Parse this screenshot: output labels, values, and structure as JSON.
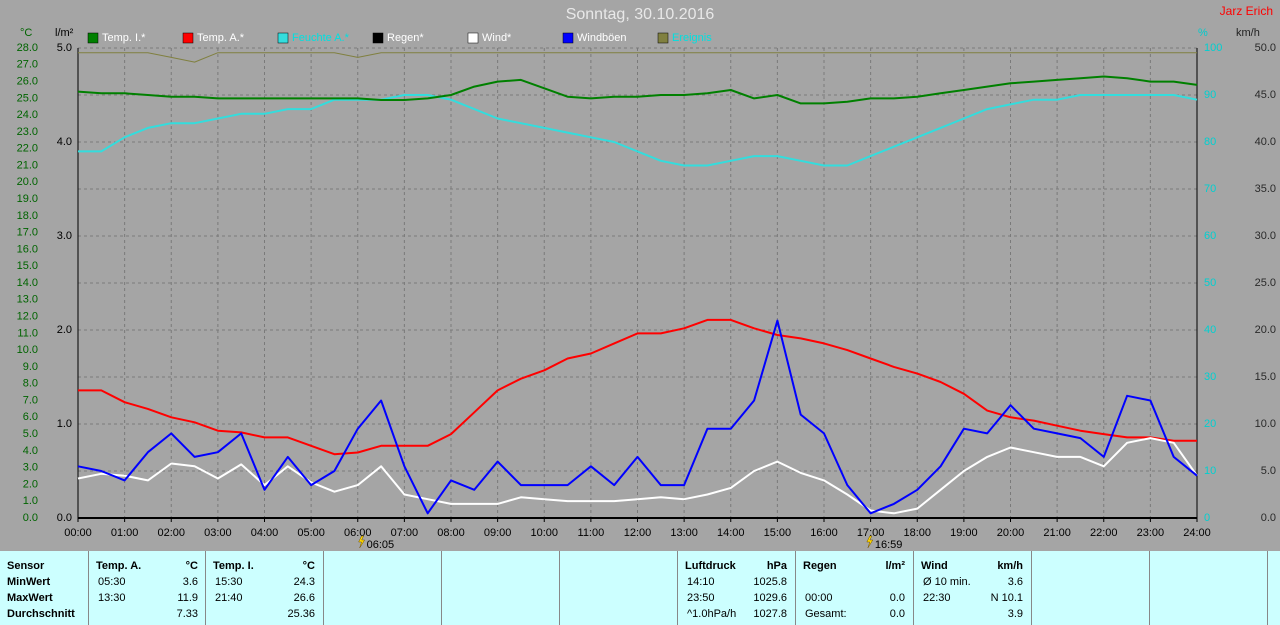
{
  "header": {
    "title": "Sonntag, 30.10.2016",
    "author": "Jarz Erich"
  },
  "chart_data": {
    "type": "line",
    "y_label": "°C",
    "y4_label": "l/m²",
    "y2_label": "%",
    "y3_label": "km/h",
    "xlim": [
      0,
      24
    ],
    "xticks": [
      {
        "value": 0,
        "label": "00:00"
      },
      {
        "value": 1,
        "label": "01:00"
      },
      {
        "value": 2,
        "label": "02:00"
      },
      {
        "value": 3,
        "label": "03:00"
      },
      {
        "value": 4,
        "label": "04:00"
      },
      {
        "value": 5,
        "label": "05:00"
      },
      {
        "value": 6,
        "label": "06:00"
      },
      {
        "value": 7,
        "label": "07:00"
      },
      {
        "value": 8,
        "label": "08:00"
      },
      {
        "value": 9,
        "label": "09:00"
      },
      {
        "value": 10,
        "label": "10:00"
      },
      {
        "value": 11,
        "label": "11:00"
      },
      {
        "value": 12,
        "label": "12:00"
      },
      {
        "value": 13,
        "label": "13:00"
      },
      {
        "value": 14,
        "label": "14:00"
      },
      {
        "value": 15,
        "label": "15:00"
      },
      {
        "value": 16,
        "label": "16:00"
      },
      {
        "value": 17,
        "label": "17:00"
      },
      {
        "value": 18,
        "label": "18:00"
      },
      {
        "value": 19,
        "label": "19:00"
      },
      {
        "value": 20,
        "label": "20:00"
      },
      {
        "value": 21,
        "label": "21:00"
      },
      {
        "value": 22,
        "label": "22:00"
      },
      {
        "value": 23,
        "label": "23:00"
      },
      {
        "value": 24,
        "label": "24:00"
      }
    ],
    "ylim": [
      0,
      28
    ],
    "yticks": [
      {
        "value": 0,
        "label": "0.0"
      },
      {
        "value": 1,
        "label": "1.0"
      },
      {
        "value": 2,
        "label": "2.0"
      },
      {
        "value": 3,
        "label": "3.0"
      },
      {
        "value": 4,
        "label": "4.0"
      },
      {
        "value": 5,
        "label": "5.0"
      },
      {
        "value": 6,
        "label": "6.0"
      },
      {
        "value": 7,
        "label": "7.0"
      },
      {
        "value": 8,
        "label": "8.0"
      },
      {
        "value": 9,
        "label": "9.0"
      },
      {
        "value": 10,
        "label": "10.0"
      },
      {
        "value": 11,
        "label": "11.0"
      },
      {
        "value": 12,
        "label": "12.0"
      },
      {
        "value": 13,
        "label": "13.0"
      },
      {
        "value": 14,
        "label": "14.0"
      },
      {
        "value": 15,
        "label": "15.0"
      },
      {
        "value": 16,
        "label": "16.0"
      },
      {
        "value": 17,
        "label": "17.0"
      },
      {
        "value": 18,
        "label": "18.0"
      },
      {
        "value": 19,
        "label": "19.0"
      },
      {
        "value": 20,
        "label": "20.0"
      },
      {
        "value": 21,
        "label": "21.0"
      },
      {
        "value": 22,
        "label": "22.0"
      },
      {
        "value": 23,
        "label": "23.0"
      },
      {
        "value": 24,
        "label": "24.0"
      },
      {
        "value": 25,
        "label": "25.0"
      },
      {
        "value": 26,
        "label": "26.0"
      },
      {
        "value": 27,
        "label": "27.0"
      },
      {
        "value": 28,
        "label": "28.0"
      }
    ],
    "y4lim": [
      0,
      5
    ],
    "y4ticks": [
      {
        "value": 0,
        "label": "0.0"
      },
      {
        "value": 1,
        "label": "1.0"
      },
      {
        "value": 2,
        "label": "2.0"
      },
      {
        "value": 3,
        "label": "3.0"
      },
      {
        "value": 4,
        "label": "4.0"
      },
      {
        "value": 5,
        "label": "5.0"
      }
    ],
    "y2lim": [
      0,
      100
    ],
    "y2ticks": [
      0,
      10,
      20,
      30,
      40,
      50,
      60,
      70,
      80,
      90,
      100
    ],
    "y3lim": [
      0,
      50
    ],
    "y3ticks": [
      {
        "value": 0,
        "label": "0.0"
      },
      {
        "value": 5,
        "label": "5.0"
      },
      {
        "value": 10,
        "label": "10.0"
      },
      {
        "value": 15,
        "label": "15.0"
      },
      {
        "value": 20,
        "label": "20.0"
      },
      {
        "value": 25,
        "label": "25.0"
      },
      {
        "value": 30,
        "label": "30.0"
      },
      {
        "value": 35,
        "label": "35.0"
      },
      {
        "value": 40,
        "label": "40.0"
      },
      {
        "value": 45,
        "label": "45.0"
      },
      {
        "value": 50,
        "label": "50.0"
      }
    ],
    "grid": true,
    "x": [
      0,
      0.5,
      1,
      1.5,
      2,
      2.5,
      3,
      3.5,
      4,
      4.5,
      5,
      5.5,
      6,
      6.5,
      7,
      7.5,
      8,
      8.5,
      9,
      9.5,
      10,
      10.5,
      11,
      11.5,
      12,
      12.5,
      13,
      13.5,
      14,
      14.5,
      15,
      15.5,
      16,
      16.5,
      17,
      17.5,
      18,
      18.5,
      19,
      19.5,
      20,
      20.5,
      21,
      21.5,
      22,
      22.5,
      23,
      23.5,
      24
    ],
    "series": [
      {
        "name": "Temp. I.*",
        "color": "#008000",
        "axis": "y",
        "values": [
          25.4,
          25.3,
          25.3,
          25.2,
          25.1,
          25.1,
          25.0,
          25.0,
          25.0,
          25.0,
          25.0,
          25.0,
          25.0,
          24.9,
          24.9,
          25.0,
          25.2,
          25.7,
          26.0,
          26.1,
          25.6,
          25.1,
          25.0,
          25.1,
          25.1,
          25.2,
          25.2,
          25.3,
          25.5,
          25.0,
          25.2,
          24.7,
          24.7,
          24.8,
          25.0,
          25.0,
          25.1,
          25.3,
          25.5,
          25.7,
          25.9,
          26.0,
          26.1,
          26.2,
          26.3,
          26.2,
          26.0,
          26.0,
          25.8
        ]
      },
      {
        "name": "Temp. A.*",
        "color": "#ff0000",
        "axis": "y",
        "values": [
          7.6,
          7.6,
          6.9,
          6.5,
          6.0,
          5.7,
          5.2,
          5.1,
          4.8,
          4.8,
          4.3,
          3.8,
          3.9,
          4.3,
          4.3,
          4.3,
          5.0,
          6.3,
          7.6,
          8.3,
          8.8,
          9.5,
          9.8,
          10.4,
          11.0,
          11.0,
          11.3,
          11.8,
          11.8,
          11.3,
          10.9,
          10.7,
          10.4,
          10.0,
          9.5,
          9.0,
          8.6,
          8.1,
          7.4,
          6.4,
          6.0,
          5.8,
          5.5,
          5.2,
          5.0,
          4.8,
          4.8,
          4.6,
          4.6
        ]
      },
      {
        "name": "Feuchte A.*",
        "color": "#33dddd",
        "axis": "y2",
        "values": [
          78,
          78,
          81,
          83,
          84,
          84,
          85,
          86,
          86,
          87,
          87,
          89,
          89,
          89,
          90,
          90,
          89,
          87,
          85,
          84,
          83,
          82,
          81,
          80,
          78,
          76,
          75,
          75,
          76,
          77,
          77,
          76,
          75,
          75,
          77,
          79,
          81,
          83,
          85,
          87,
          88,
          89,
          89,
          90,
          90,
          90,
          90,
          90,
          89
        ]
      },
      {
        "name": "Regen*",
        "color": "#000000",
        "axis": "y4",
        "values": [
          0,
          0,
          0,
          0,
          0,
          0,
          0,
          0,
          0,
          0,
          0,
          0,
          0,
          0,
          0,
          0,
          0,
          0,
          0,
          0,
          0,
          0,
          0,
          0,
          0,
          0,
          0,
          0,
          0,
          0,
          0,
          0,
          0,
          0,
          0,
          0,
          0,
          0,
          0,
          0,
          0,
          0,
          0,
          0,
          0,
          0,
          0,
          0,
          0
        ]
      },
      {
        "name": "Wind*",
        "color": "#ffffff",
        "axis": "y3",
        "values": [
          4.2,
          4.7,
          4.5,
          4.0,
          5.8,
          5.5,
          4.2,
          5.7,
          3.5,
          5.5,
          3.8,
          2.8,
          3.5,
          5.5,
          2.5,
          2.0,
          1.5,
          1.5,
          1.5,
          2.2,
          2.0,
          1.8,
          1.8,
          1.8,
          2.0,
          2.2,
          2.0,
          2.5,
          3.2,
          5.0,
          6.0,
          4.8,
          4.0,
          2.5,
          0.8,
          0.5,
          1.0,
          3.0,
          5.0,
          6.5,
          7.5,
          7.0,
          6.5,
          6.5,
          5.5,
          8.0,
          8.5,
          8.0,
          4.5
        ]
      },
      {
        "name": "Windböen",
        "color": "#0000ff",
        "axis": "y3",
        "values": [
          5.5,
          5.0,
          4.0,
          7.0,
          9.0,
          6.5,
          7.0,
          9.0,
          3.0,
          6.5,
          3.5,
          5.0,
          9.5,
          12.5,
          5.5,
          0.5,
          4.0,
          3.0,
          6.0,
          3.5,
          3.5,
          3.5,
          5.5,
          3.5,
          6.5,
          3.5,
          3.5,
          9.5,
          9.5,
          12.5,
          21.0,
          11.0,
          9.0,
          3.5,
          0.5,
          1.5,
          3.0,
          5.5,
          9.5,
          9.0,
          12.0,
          9.5,
          9.0,
          8.5,
          6.5,
          13.0,
          12.5,
          6.5,
          4.5
        ]
      },
      {
        "name": "Ereignis",
        "color": "#808040",
        "axis": "y2",
        "values": [
          99,
          99,
          99,
          99,
          98,
          97,
          99,
          99,
          99,
          99,
          99,
          99,
          98,
          99,
          99,
          99,
          99,
          99,
          99,
          99,
          99,
          99,
          99,
          99,
          99,
          99,
          99,
          99,
          99,
          99,
          99,
          99,
          99,
          99,
          99,
          99,
          99,
          99,
          99,
          99,
          99,
          99,
          99,
          99,
          99,
          99,
          99,
          99,
          99
        ]
      }
    ],
    "events": [
      {
        "x": 6.083,
        "label": "06:05"
      },
      {
        "x": 16.983,
        "label": "16:59"
      }
    ]
  },
  "stats": {
    "row_labels": [
      "Sensor",
      "MinWert",
      "MaxWert",
      "Durchschnitt"
    ],
    "groups": [
      {
        "title": "Temp. A.",
        "unit": "°C",
        "rows": [
          [
            "05:30",
            "3.6"
          ],
          [
            "13:30",
            "11.9"
          ],
          [
            null,
            "7.33"
          ]
        ]
      },
      {
        "title": "Temp. I.",
        "unit": "°C",
        "rows": [
          [
            "15:30",
            "24.3"
          ],
          [
            "21:40",
            "26.6"
          ],
          [
            null,
            "25.36"
          ]
        ]
      },
      {
        "title": "Luftdruck",
        "unit": "hPa",
        "rows": [
          [
            "14:10",
            "1025.8"
          ],
          [
            "23:50",
            "1029.6"
          ],
          [
            "^1.0hPa/h",
            "1027.8"
          ]
        ]
      },
      {
        "title": "Regen",
        "unit": "l/m²",
        "rows": [
          null,
          [
            "00:00",
            "0.0"
          ],
          [
            "Gesamt:",
            "0.0"
          ]
        ]
      },
      {
        "title": "Wind",
        "unit": "km/h",
        "rows": [
          [
            "Ø 10 min.",
            "3.6"
          ],
          [
            "22:30",
            "N 10.1"
          ],
          [
            null,
            "3.9"
          ]
        ]
      }
    ]
  }
}
